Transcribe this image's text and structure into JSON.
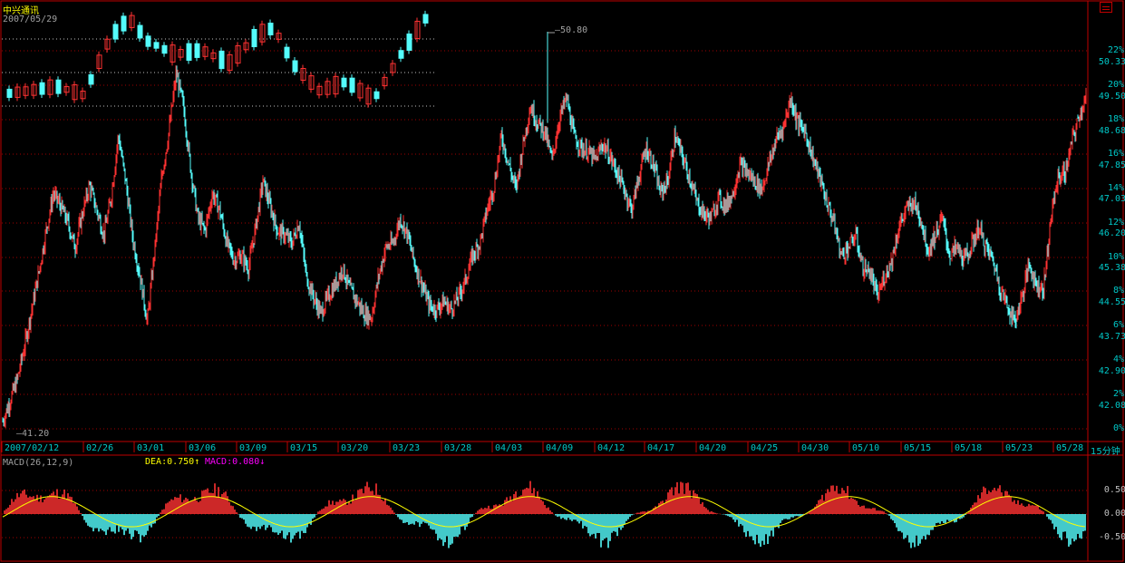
{
  "header": {
    "stock_name": "中兴通讯",
    "date": "2007/05/29"
  },
  "colors": {
    "up": "#ff3232",
    "down": "#54fcfc",
    "frame": "#c00000",
    "grid": "#a00000",
    "axis_text": "#00c8c8",
    "dea": "#ffff00",
    "macd": "#ff00ff",
    "text_gray": "#a0a0a0"
  },
  "chart_data": [
    {
      "type": "candlestick",
      "title": "中兴通讯",
      "subtitle": "2007/05/29",
      "period": "15分钟",
      "ylim": [
        41.2,
        50.8
      ],
      "y_ticks_price": [
        "50.33",
        "49.50",
        "48.68",
        "47.85",
        "47.03",
        "46.20",
        "45.38",
        "44.55",
        "43.73",
        "42.90",
        "42.08"
      ],
      "y_ticks_percent": [
        "22%",
        "20%",
        "18%",
        "16%",
        "14%",
        "12%",
        "10%",
        "8%",
        "6%",
        "4%",
        "2%",
        "0%"
      ],
      "x_ticks": [
        "2007/02/12",
        "02/26",
        "03/01",
        "03/06",
        "03/09",
        "03/15",
        "03/20",
        "03/23",
        "03/28",
        "04/03",
        "04/09",
        "04/12",
        "04/17",
        "04/20",
        "04/25",
        "04/30",
        "05/10",
        "05/15",
        "05/18",
        "05/23",
        "05/28"
      ],
      "annotations": {
        "max": "50.80",
        "min": "41.20"
      },
      "close_path": [
        [
          0,
          41.4
        ],
        [
          2,
          41.9
        ],
        [
          4,
          42.4
        ],
        [
          6,
          43.2
        ],
        [
          8,
          44.1
        ],
        [
          10,
          45.0
        ],
        [
          12,
          46.0
        ],
        [
          14,
          46.9
        ],
        [
          16,
          46.6
        ],
        [
          18,
          46.2
        ],
        [
          20,
          45.6
        ],
        [
          22,
          46.4
        ],
        [
          24,
          47.1
        ],
        [
          26,
          46.5
        ],
        [
          28,
          45.9
        ],
        [
          30,
          46.8
        ],
        [
          32,
          48.3
        ],
        [
          34,
          47.2
        ],
        [
          36,
          45.8
        ],
        [
          38,
          44.9
        ],
        [
          40,
          43.8
        ],
        [
          42,
          45.5
        ],
        [
          44,
          47.3
        ],
        [
          46,
          48.4
        ],
        [
          48,
          49.8
        ],
        [
          50,
          49.0
        ],
        [
          52,
          47.5
        ],
        [
          54,
          46.3
        ],
        [
          56,
          46.0
        ],
        [
          58,
          46.9
        ],
        [
          60,
          46.5
        ],
        [
          62,
          45.7
        ],
        [
          64,
          45.3
        ],
        [
          66,
          45.4
        ],
        [
          68,
          45.1
        ],
        [
          70,
          46.1
        ],
        [
          72,
          47.2
        ],
        [
          74,
          46.6
        ],
        [
          76,
          46.0
        ],
        [
          78,
          45.9
        ],
        [
          80,
          45.7
        ],
        [
          82,
          46.2
        ],
        [
          84,
          44.9
        ],
        [
          86,
          44.4
        ],
        [
          88,
          44.0
        ],
        [
          90,
          44.4
        ],
        [
          92,
          44.7
        ],
        [
          94,
          45.1
        ],
        [
          96,
          44.6
        ],
        [
          98,
          44.3
        ],
        [
          100,
          44.0
        ],
        [
          102,
          43.9
        ],
        [
          104,
          44.9
        ],
        [
          106,
          45.6
        ],
        [
          108,
          45.7
        ],
        [
          110,
          46.3
        ],
        [
          112,
          45.9
        ],
        [
          114,
          45.2
        ],
        [
          116,
          44.7
        ],
        [
          118,
          44.2
        ],
        [
          120,
          44.1
        ],
        [
          122,
          44.3
        ],
        [
          124,
          44.1
        ],
        [
          126,
          44.4
        ],
        [
          128,
          44.8
        ],
        [
          130,
          45.4
        ],
        [
          132,
          45.7
        ],
        [
          134,
          46.5
        ],
        [
          136,
          47.1
        ],
        [
          138,
          48.3
        ],
        [
          140,
          47.6
        ],
        [
          142,
          47.0
        ],
        [
          144,
          48.1
        ],
        [
          146,
          49.0
        ],
        [
          148,
          48.6
        ],
        [
          150,
          48.4
        ],
        [
          152,
          47.7
        ],
        [
          154,
          48.7
        ],
        [
          156,
          49.2
        ],
        [
          158,
          48.3
        ],
        [
          160,
          48.0
        ],
        [
          162,
          47.9
        ],
        [
          164,
          47.7
        ],
        [
          166,
          48.1
        ],
        [
          168,
          47.8
        ],
        [
          170,
          47.4
        ],
        [
          172,
          47.0
        ],
        [
          174,
          46.5
        ],
        [
          176,
          47.3
        ],
        [
          178,
          48.0
        ],
        [
          180,
          47.6
        ],
        [
          182,
          46.9
        ],
        [
          184,
          47.2
        ],
        [
          186,
          48.3
        ],
        [
          188,
          47.8
        ],
        [
          190,
          47.3
        ],
        [
          192,
          46.7
        ],
        [
          194,
          46.4
        ],
        [
          196,
          46.3
        ],
        [
          198,
          46.8
        ],
        [
          200,
          46.6
        ],
        [
          202,
          46.9
        ],
        [
          204,
          47.6
        ],
        [
          206,
          47.4
        ],
        [
          208,
          47.2
        ],
        [
          210,
          47.0
        ],
        [
          212,
          47.6
        ],
        [
          214,
          48.2
        ],
        [
          216,
          48.5
        ],
        [
          218,
          49.2
        ],
        [
          220,
          48.6
        ],
        [
          222,
          48.4
        ],
        [
          224,
          47.8
        ],
        [
          226,
          47.3
        ],
        [
          228,
          46.7
        ],
        [
          230,
          46.2
        ],
        [
          232,
          45.4
        ],
        [
          234,
          45.6
        ],
        [
          236,
          45.9
        ],
        [
          238,
          45.1
        ],
        [
          240,
          45.0
        ],
        [
          242,
          44.4
        ],
        [
          244,
          44.9
        ],
        [
          246,
          45.3
        ],
        [
          248,
          46.1
        ],
        [
          250,
          46.5
        ],
        [
          252,
          46.7
        ],
        [
          254,
          46.3
        ],
        [
          256,
          45.5
        ],
        [
          258,
          45.9
        ],
        [
          260,
          46.3
        ],
        [
          262,
          45.4
        ],
        [
          264,
          45.6
        ],
        [
          266,
          45.3
        ],
        [
          268,
          45.6
        ],
        [
          270,
          46.1
        ],
        [
          272,
          45.6
        ],
        [
          274,
          45.3
        ],
        [
          276,
          44.6
        ],
        [
          278,
          44.2
        ],
        [
          280,
          43.8
        ],
        [
          282,
          44.4
        ],
        [
          284,
          45.2
        ],
        [
          286,
          44.7
        ],
        [
          288,
          44.6
        ],
        [
          290,
          46.3
        ],
        [
          292,
          47.3
        ],
        [
          294,
          47.4
        ],
        [
          296,
          48.2
        ],
        [
          298,
          48.8
        ],
        [
          300,
          49.3
        ]
      ]
    },
    {
      "type": "line",
      "title": "MACD(26,12,9)",
      "series": [
        {
          "name": "DEA",
          "value_label": "0.750↑"
        },
        {
          "name": "MACD",
          "value_label": "0.080↓"
        }
      ],
      "ylim": [
        -0.8,
        0.8
      ],
      "y_ticks": [
        "0.50",
        "0.00",
        "-0.50"
      ]
    }
  ],
  "footer": {
    "period_label": "15分钟"
  }
}
